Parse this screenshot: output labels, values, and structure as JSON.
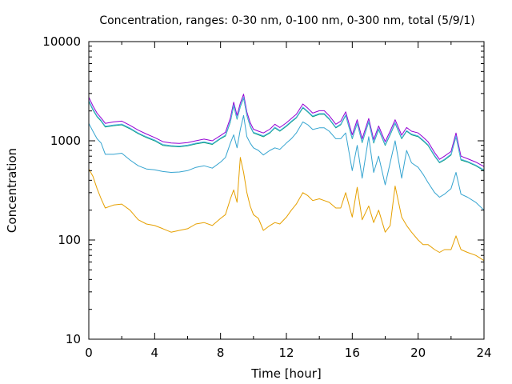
{
  "chart_data": {
    "type": "line",
    "title": "Concentration, ranges: 0-30 nm, 0-100 nm, 0-300 nm, total (5/9/1)",
    "xlabel": "Time [hour]",
    "ylabel": "Concentration",
    "xlim": [
      0,
      24
    ],
    "ylim": [
      10,
      10000
    ],
    "yscale": "log",
    "grid": false,
    "legend": "none",
    "x_ticks": [
      "0",
      "4",
      "8",
      "12",
      "16",
      "20",
      "24"
    ],
    "y_ticks": [
      "10",
      "100",
      "1000",
      "10000"
    ],
    "x": [
      0,
      0.25,
      0.5,
      0.75,
      1,
      1.5,
      2,
      2.5,
      3,
      3.5,
      4,
      4.5,
      5,
      5.5,
      6,
      6.5,
      7,
      7.5,
      8,
      8.3,
      8.6,
      8.8,
      9,
      9.2,
      9.4,
      9.6,
      9.8,
      10,
      10.3,
      10.6,
      11,
      11.3,
      11.6,
      12,
      12.3,
      12.6,
      13,
      13.3,
      13.6,
      14,
      14.3,
      14.6,
      15,
      15.3,
      15.6,
      16,
      16.3,
      16.6,
      17,
      17.3,
      17.6,
      18,
      18.3,
      18.6,
      19,
      19.3,
      19.6,
      20,
      20.3,
      20.6,
      21,
      21.3,
      21.6,
      22,
      22.3,
      22.6,
      23,
      23.5,
      24
    ],
    "series": [
      {
        "color": "#e6a000",
        "values": [
          520,
          440,
          330,
          260,
          210,
          225,
          230,
          200,
          160,
          145,
          140,
          130,
          120,
          125,
          130,
          145,
          150,
          140,
          165,
          180,
          260,
          320,
          240,
          680,
          480,
          300,
          220,
          180,
          165,
          125,
          140,
          150,
          145,
          170,
          200,
          230,
          300,
          280,
          250,
          260,
          250,
          240,
          210,
          210,
          300,
          170,
          340,
          160,
          220,
          150,
          200,
          120,
          140,
          350,
          170,
          140,
          120,
          100,
          90,
          90,
          80,
          75,
          80,
          80,
          110,
          80,
          75,
          70,
          62
        ]
      },
      {
        "color": "#35a4d0",
        "values": [
          1500,
          1250,
          1050,
          950,
          730,
          730,
          750,
          640,
          560,
          520,
          510,
          490,
          480,
          485,
          500,
          540,
          560,
          530,
          610,
          680,
          950,
          1150,
          850,
          1300,
          1800,
          1100,
          950,
          850,
          800,
          720,
          800,
          850,
          820,
          950,
          1050,
          1200,
          1550,
          1450,
          1300,
          1350,
          1350,
          1250,
          1050,
          1050,
          1200,
          500,
          900,
          420,
          1100,
          480,
          700,
          360,
          600,
          1000,
          420,
          800,
          600,
          540,
          460,
          380,
          300,
          270,
          290,
          330,
          480,
          290,
          270,
          240,
          200
        ]
      },
      {
        "color": "#009e73",
        "values": [
          2500,
          2050,
          1750,
          1580,
          1380,
          1420,
          1450,
          1320,
          1180,
          1080,
          1000,
          900,
          880,
          870,
          890,
          930,
          960,
          920,
          1050,
          1120,
          1550,
          2250,
          1650,
          2200,
          2700,
          1800,
          1400,
          1200,
          1150,
          1100,
          1200,
          1350,
          1250,
          1400,
          1550,
          1700,
          2150,
          1950,
          1750,
          1850,
          1850,
          1650,
          1350,
          1450,
          1800,
          1050,
          1500,
          960,
          1550,
          950,
          1300,
          900,
          1150,
          1500,
          1050,
          1250,
          1150,
          1100,
          1000,
          900,
          700,
          600,
          640,
          720,
          1100,
          640,
          610,
          560,
          500
        ]
      },
      {
        "color": "#9400d3",
        "values": [
          2750,
          2250,
          1900,
          1700,
          1500,
          1550,
          1580,
          1430,
          1280,
          1170,
          1080,
          980,
          950,
          940,
          960,
          1000,
          1040,
          1000,
          1130,
          1220,
          1700,
          2450,
          1800,
          2400,
          2950,
          1950,
          1530,
          1310,
          1250,
          1200,
          1310,
          1470,
          1360,
          1520,
          1680,
          1850,
          2350,
          2130,
          1900,
          2010,
          2010,
          1790,
          1470,
          1580,
          1960,
          1150,
          1630,
          1050,
          1680,
          1030,
          1410,
          980,
          1250,
          1630,
          1140,
          1360,
          1250,
          1200,
          1090,
          980,
          760,
          650,
          700,
          780,
          1200,
          700,
          660,
          610,
          550
        ]
      },
      {
        "color": "#56b4e9",
        "values": [
          2550,
          2100,
          1780,
          1610,
          1405,
          1445,
          1475,
          1345,
          1200,
          1100,
          1018,
          918,
          895,
          885,
          905,
          946,
          978,
          936,
          1068,
          1140,
          1580,
          2300,
          1680,
          2240,
          2760,
          1830,
          1425,
          1220,
          1170,
          1120,
          1220,
          1375,
          1270,
          1425,
          1580,
          1730,
          2190,
          1985,
          1780,
          1885,
          1885,
          1680,
          1375,
          1475,
          1835,
          1070,
          1525,
          978,
          1580,
          968,
          1325,
          916,
          1170,
          1530,
          1070,
          1270,
          1170,
          1120,
          1018,
          916,
          713,
          610,
          652,
          733,
          1120,
          652,
          620,
          570,
          510
        ]
      }
    ]
  }
}
